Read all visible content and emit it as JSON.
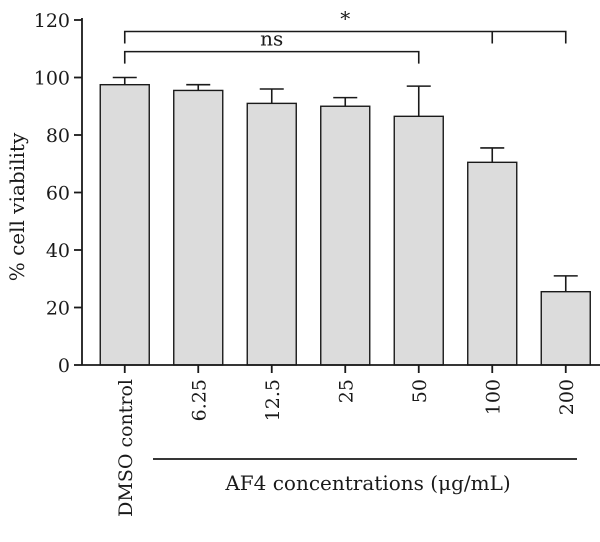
{
  "chart_data": {
    "type": "bar",
    "title": "",
    "ylabel": "% cell viability",
    "xlabel": "AF4 concentrations (μg/mL)",
    "ylim": [
      0,
      120
    ],
    "yticks": [
      0,
      20,
      40,
      60,
      80,
      100,
      120
    ],
    "categories": [
      "DMSO control",
      "6.25",
      "12.5",
      "25",
      "50",
      "100",
      "200"
    ],
    "values": [
      97.5,
      95.5,
      91,
      90,
      86.5,
      70.5,
      25.5
    ],
    "error": [
      2.5,
      2,
      5,
      3,
      10.5,
      5,
      5.5
    ],
    "grid": false,
    "significance": [
      {
        "label": "ns",
        "from": 0,
        "to": 4,
        "level": 109
      },
      {
        "label": "*",
        "from": 0,
        "to": 6,
        "level": 116,
        "ticks": [
          5,
          6
        ]
      }
    ]
  }
}
